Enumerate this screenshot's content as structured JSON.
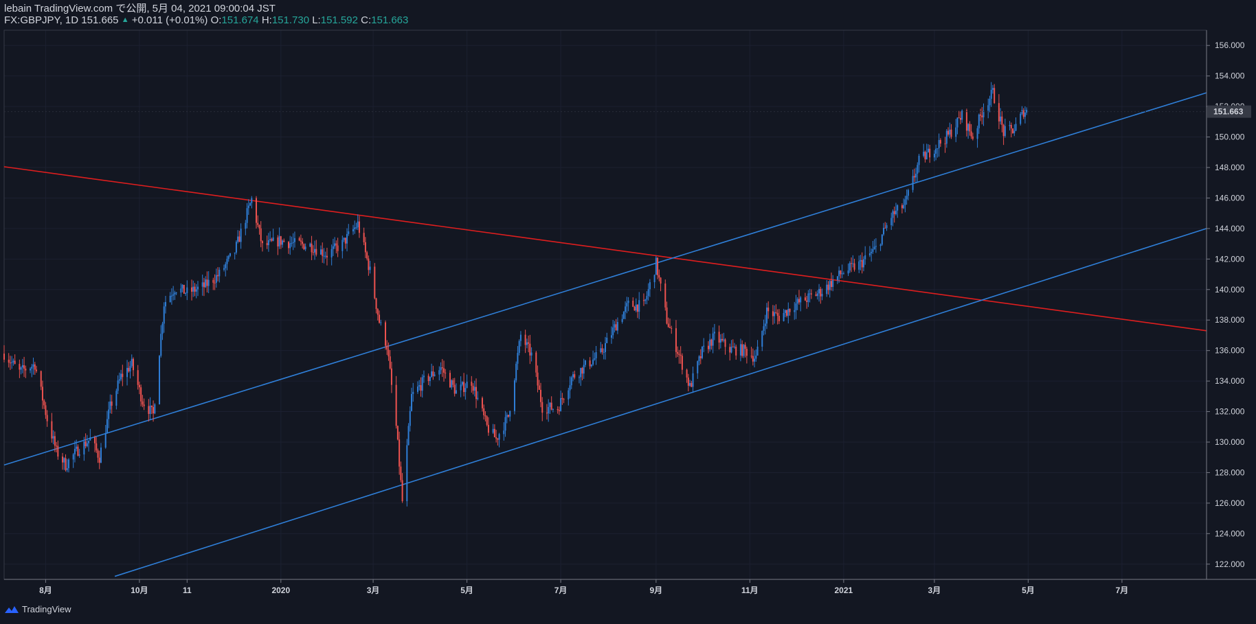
{
  "header": {
    "publish_line": "lebain TradingView.com で公開, 5月 04, 2021 09:00:04 JST",
    "symbol_interval": "FX:GBPJPY, 1D",
    "last": "151.665",
    "change": "+0.011 (+0.01%)",
    "o_label": "O:",
    "o_value": "151.674",
    "h_label": "H:",
    "h_value": "151.730",
    "l_label": "L:",
    "l_value": "151.592",
    "c_label": "C:",
    "c_value": "151.663"
  },
  "footer": {
    "brand": "TradingView"
  },
  "colors": {
    "background": "#131722",
    "up": "#2962ff",
    "candle_up": "#2f7fd8",
    "candle_down": "#ef5350",
    "channel_line": "#2f7fd8",
    "resistance_line": "#e01e1e",
    "axis": "#787b86",
    "price_badge_bg": "#363a45"
  },
  "chart_data": {
    "type": "candlestick",
    "symbol": "FX:GBPJPY",
    "interval": "1D",
    "ylim": [
      121,
      157
    ],
    "xlim": [
      "2019-07-05",
      "2021-08-25"
    ],
    "y_ticks": [
      "156.000",
      "154.000",
      "152.000",
      "150.000",
      "148.000",
      "146.000",
      "144.000",
      "142.000",
      "140.000",
      "138.000",
      "136.000",
      "134.000",
      "132.000",
      "130.000",
      "128.000",
      "126.000",
      "124.000",
      "122.000"
    ],
    "x_ticks": [
      {
        "label": "8月",
        "date": "2019-08-01"
      },
      {
        "label": "10月",
        "date": "2019-10-01"
      },
      {
        "label": "11",
        "date": "2019-11-01"
      },
      {
        "label": "2020",
        "date": "2020-01-01"
      },
      {
        "label": "3月",
        "date": "2020-03-01"
      },
      {
        "label": "5月",
        "date": "2020-05-01"
      },
      {
        "label": "7月",
        "date": "2020-07-01"
      },
      {
        "label": "9月",
        "date": "2020-09-01"
      },
      {
        "label": "11月",
        "date": "2020-11-01"
      },
      {
        "label": "2021",
        "date": "2021-01-01"
      },
      {
        "label": "3月",
        "date": "2021-03-01"
      },
      {
        "label": "5月",
        "date": "2021-05-01"
      },
      {
        "label": "7月",
        "date": "2021-07-01"
      }
    ],
    "last_price_label": "151.663",
    "last_price": 151.663,
    "closes": [
      {
        "date": "2019-07-05",
        "close": 135.8
      },
      {
        "date": "2019-07-15",
        "close": 134.6
      },
      {
        "date": "2019-07-25",
        "close": 135.1
      },
      {
        "date": "2019-08-02",
        "close": 131.5
      },
      {
        "date": "2019-08-08",
        "close": 129.4
      },
      {
        "date": "2019-08-14",
        "close": 128.5
      },
      {
        "date": "2019-08-22",
        "close": 129.5
      },
      {
        "date": "2019-08-30",
        "close": 130.2
      },
      {
        "date": "2019-09-05",
        "close": 129.0
      },
      {
        "date": "2019-09-12",
        "close": 132.3
      },
      {
        "date": "2019-09-19",
        "close": 134.3
      },
      {
        "date": "2019-09-26",
        "close": 135.1
      },
      {
        "date": "2019-10-03",
        "close": 132.7
      },
      {
        "date": "2019-10-10",
        "close": 131.8
      },
      {
        "date": "2019-10-17",
        "close": 139.1
      },
      {
        "date": "2019-10-24",
        "close": 140.1
      },
      {
        "date": "2019-11-01",
        "close": 139.8
      },
      {
        "date": "2019-11-12",
        "close": 140.2
      },
      {
        "date": "2019-11-22",
        "close": 141.0
      },
      {
        "date": "2019-12-02",
        "close": 142.5
      },
      {
        "date": "2019-12-13",
        "close": 145.9
      },
      {
        "date": "2019-12-20",
        "close": 142.8
      },
      {
        "date": "2019-12-31",
        "close": 143.2
      },
      {
        "date": "2020-01-10",
        "close": 143.0
      },
      {
        "date": "2020-01-20",
        "close": 142.9
      },
      {
        "date": "2020-01-31",
        "close": 142.3
      },
      {
        "date": "2020-02-10",
        "close": 143.0
      },
      {
        "date": "2020-02-20",
        "close": 144.3
      },
      {
        "date": "2020-02-28",
        "close": 141.2
      },
      {
        "date": "2020-03-05",
        "close": 137.9
      },
      {
        "date": "2020-03-10",
        "close": 136.3
      },
      {
        "date": "2020-03-16",
        "close": 131.0
      },
      {
        "date": "2020-03-20",
        "close": 126.1
      },
      {
        "date": "2020-03-26",
        "close": 133.0
      },
      {
        "date": "2020-04-03",
        "close": 134.0
      },
      {
        "date": "2020-04-14",
        "close": 134.9
      },
      {
        "date": "2020-04-24",
        "close": 133.3
      },
      {
        "date": "2020-05-04",
        "close": 134.0
      },
      {
        "date": "2020-05-14",
        "close": 131.0
      },
      {
        "date": "2020-05-20",
        "close": 130.2
      },
      {
        "date": "2020-05-28",
        "close": 131.7
      },
      {
        "date": "2020-06-05",
        "close": 137.0
      },
      {
        "date": "2020-06-12",
        "close": 135.7
      },
      {
        "date": "2020-06-19",
        "close": 132.3
      },
      {
        "date": "2020-06-29",
        "close": 132.2
      },
      {
        "date": "2020-07-08",
        "close": 134.2
      },
      {
        "date": "2020-07-17",
        "close": 135.0
      },
      {
        "date": "2020-07-27",
        "close": 135.8
      },
      {
        "date": "2020-08-06",
        "close": 137.7
      },
      {
        "date": "2020-08-14",
        "close": 139.0
      },
      {
        "date": "2020-08-24",
        "close": 138.9
      },
      {
        "date": "2020-09-01",
        "close": 141.7
      },
      {
        "date": "2020-09-08",
        "close": 138.0
      },
      {
        "date": "2020-09-16",
        "close": 135.7
      },
      {
        "date": "2020-09-23",
        "close": 133.6
      },
      {
        "date": "2020-10-01",
        "close": 135.9
      },
      {
        "date": "2020-10-09",
        "close": 136.9
      },
      {
        "date": "2020-10-19",
        "close": 136.1
      },
      {
        "date": "2020-10-29",
        "close": 136.0
      },
      {
        "date": "2020-11-05",
        "close": 135.5
      },
      {
        "date": "2020-11-12",
        "close": 138.6
      },
      {
        "date": "2020-11-20",
        "close": 138.2
      },
      {
        "date": "2020-11-30",
        "close": 139.0
      },
      {
        "date": "2020-12-10",
        "close": 139.5
      },
      {
        "date": "2020-12-18",
        "close": 139.9
      },
      {
        "date": "2020-12-31",
        "close": 141.1
      },
      {
        "date": "2021-01-12",
        "close": 141.7
      },
      {
        "date": "2021-01-22",
        "close": 142.7
      },
      {
        "date": "2021-02-01",
        "close": 144.8
      },
      {
        "date": "2021-02-10",
        "close": 145.6
      },
      {
        "date": "2021-02-19",
        "close": 148.4
      },
      {
        "date": "2021-03-01",
        "close": 149.3
      },
      {
        "date": "2021-03-10",
        "close": 150.1
      },
      {
        "date": "2021-03-19",
        "close": 151.4
      },
      {
        "date": "2021-03-26",
        "close": 150.0
      },
      {
        "date": "2021-04-02",
        "close": 151.9
      },
      {
        "date": "2021-04-08",
        "close": 152.9
      },
      {
        "date": "2021-04-15",
        "close": 150.3
      },
      {
        "date": "2021-04-22",
        "close": 150.5
      },
      {
        "date": "2021-04-28",
        "close": 151.7
      },
      {
        "date": "2021-05-03",
        "close": 151.663
      }
    ],
    "trend_lines": [
      {
        "name": "resistance",
        "color": "#e01e1e",
        "p1": {
          "date": "2019-07-05",
          "price": 148.05
        },
        "p2": {
          "date": "2021-08-25",
          "price": 137.3
        }
      },
      {
        "name": "upper channel",
        "color": "#2f7fd8",
        "p1": {
          "date": "2019-07-05",
          "price": 128.5
        },
        "p2": {
          "date": "2021-08-25",
          "price": 152.9
        }
      },
      {
        "name": "lower channel",
        "color": "#2f7fd8",
        "p1": {
          "date": "2019-09-15",
          "price": 121.2
        },
        "p2": {
          "date": "2021-08-25",
          "price": 144.0
        }
      }
    ]
  }
}
